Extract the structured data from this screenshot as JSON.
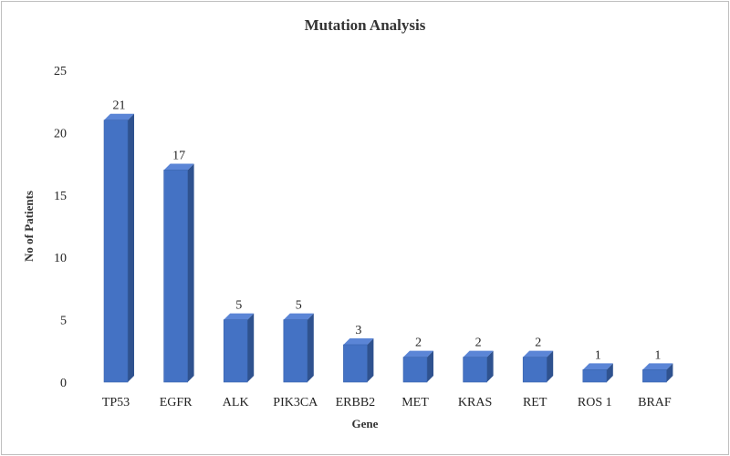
{
  "chart_data": {
    "type": "bar",
    "title": "Mutation Analysis",
    "xlabel": "Gene",
    "ylabel": "No of Patients",
    "categories": [
      "TP53",
      "EGFR",
      "ALK",
      "PIK3CA",
      "ERBB2",
      "MET",
      "KRAS",
      "RET",
      "ROS 1",
      "BRAF"
    ],
    "values": [
      21,
      17,
      5,
      5,
      3,
      2,
      2,
      2,
      1,
      1
    ],
    "ylim": [
      0,
      25
    ],
    "yticks": [
      0,
      5,
      10,
      15,
      20,
      25
    ],
    "grid": false,
    "legend": "none",
    "data_labels": true,
    "colors": {
      "bar_front": "#4472c4",
      "bar_side": "#2f528f",
      "bar_top": "#5b85d6"
    }
  }
}
